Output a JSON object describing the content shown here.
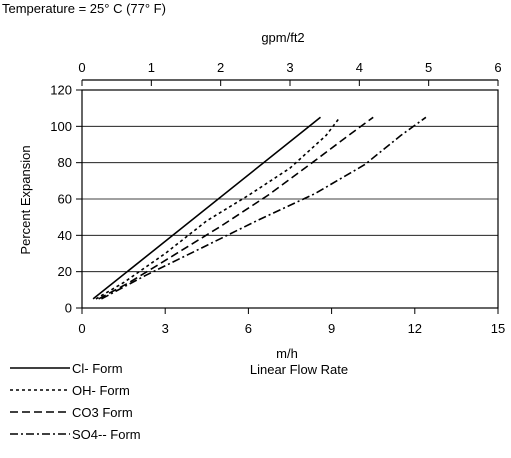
{
  "chart_data": {
    "type": "line",
    "note": "Temperature = 25° C (77° F)",
    "xlabel": "m/h",
    "xlabel2": "Linear Flow Rate",
    "x2label": "gpm/ft2",
    "ylabel": "Percent Expansion",
    "xlim": [
      0,
      15
    ],
    "x2lim": [
      0,
      6
    ],
    "ylim": [
      0,
      120
    ],
    "xticks": [
      0,
      3,
      6,
      9,
      12,
      15
    ],
    "x2ticks": [
      0,
      1,
      2,
      3,
      4,
      5,
      6
    ],
    "yticks": [
      0,
      20,
      40,
      60,
      80,
      100,
      120
    ],
    "grid": "horizontal",
    "legend_position": "bottom-left",
    "series": [
      {
        "name": "Cl- Form",
        "dash": "solid",
        "x": [
          0.4,
          8.6
        ],
        "y": [
          5,
          105
        ]
      },
      {
        "name": "OH- Form",
        "dash": "dot",
        "x": [
          0.5,
          1.5,
          3,
          4.5,
          6,
          7.5,
          8.8,
          9.3
        ],
        "y": [
          5,
          14,
          30,
          48,
          62,
          77,
          95,
          105
        ]
      },
      {
        "name": "CO3 Form",
        "dash": "dash",
        "x": [
          0.6,
          1.7,
          3.2,
          5,
          6.7,
          8.3,
          9.7,
          10.5
        ],
        "y": [
          5,
          14,
          28,
          45,
          62,
          80,
          96,
          105
        ]
      },
      {
        "name": "SO4-- Form",
        "dash": "dashdot",
        "x": [
          0.7,
          2.3,
          4.3,
          6.3,
          8.4,
          10.2,
          11.5,
          12.4
        ],
        "y": [
          5,
          18,
          33,
          48,
          63,
          79,
          95,
          105
        ]
      }
    ]
  }
}
